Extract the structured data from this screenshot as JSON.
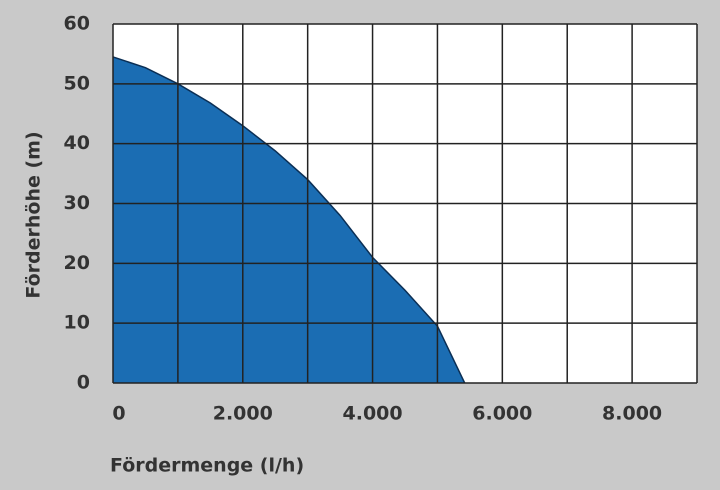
{
  "chart_data": {
    "type": "area",
    "x_label": "Fördermenge (l/h)",
    "y_label": "Förderhöhe (m)",
    "x": [
      0,
      500,
      1000,
      1500,
      2000,
      2500,
      3000,
      3500,
      4000,
      4500,
      5000,
      5420
    ],
    "values": [
      54.5,
      52.7,
      50,
      46.8,
      43,
      38.8,
      34,
      28,
      21,
      15.5,
      9.5,
      0
    ],
    "color": "#1b6db3",
    "xlim": [
      0,
      9000
    ],
    "ylim": [
      0,
      60
    ],
    "xticks": [
      0,
      {
        "value": 2000,
        "label": "2.000"
      },
      {
        "value": 4000,
        "label": "4.000"
      },
      {
        "value": 6000,
        "label": "6.000"
      },
      {
        "value": 8000,
        "label": "8.000"
      }
    ],
    "x_minor_grid": [
      1000,
      3000,
      5000,
      7000,
      9000
    ],
    "yticks": [
      0,
      10,
      20,
      30,
      40,
      50,
      60
    ],
    "grid": true
  }
}
